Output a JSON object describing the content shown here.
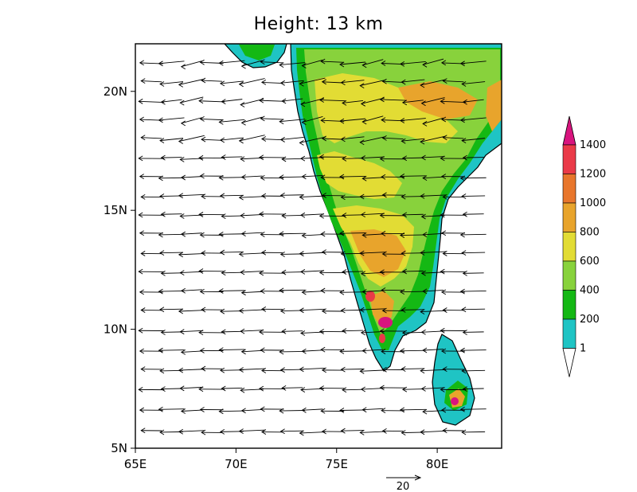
{
  "title": "Height: 13 km",
  "map": {
    "lon_range": [
      65,
      83.2
    ],
    "lat_range": [
      5,
      22
    ],
    "x_ticks": [
      {
        "value": 65,
        "label": "65E"
      },
      {
        "value": 70,
        "label": "70E"
      },
      {
        "value": 75,
        "label": "75E"
      },
      {
        "value": 80,
        "label": "80E"
      }
    ],
    "y_ticks": [
      {
        "value": 5,
        "label": "5N"
      },
      {
        "value": 10,
        "label": "10N"
      },
      {
        "value": 15,
        "label": "15N"
      },
      {
        "value": 20,
        "label": "20N"
      }
    ],
    "fill_colors": [
      "#1fc4c4",
      "#14b814",
      "#88d23c",
      "#e2dc34",
      "#e8a42c",
      "#e8762c",
      "#ea3a48",
      "#d8147e"
    ],
    "ocean_color": "#ffffff",
    "wind_vectors": {
      "direction": "westward",
      "row_latitudes": [
        5.7,
        6.6,
        7.5,
        8.3,
        9.1,
        9.9,
        10.8,
        11.6,
        12.4,
        13.2,
        14.0,
        14.8,
        15.6,
        16.4,
        17.2,
        18.0,
        18.8,
        19.6,
        20.4,
        21.2
      ],
      "column_longitudes": [
        65.8,
        66.8,
        67.8,
        68.8,
        69.8,
        70.8,
        71.8,
        72.8,
        73.8,
        74.8,
        75.8,
        76.8,
        77.8,
        78.8,
        79.8,
        80.8,
        81.8
      ],
      "reference_speed": 20,
      "reference_label": "20"
    }
  },
  "colorbar": {
    "levels": [
      "1",
      "200",
      "400",
      "600",
      "800",
      "1000",
      "1200",
      "1400"
    ],
    "colors": [
      "#1fc4c4",
      "#14b814",
      "#88d23c",
      "#e2dc34",
      "#e8a42c",
      "#e8762c",
      "#ea3a48",
      "#d8147e"
    ],
    "under_color": "#ffffff"
  }
}
